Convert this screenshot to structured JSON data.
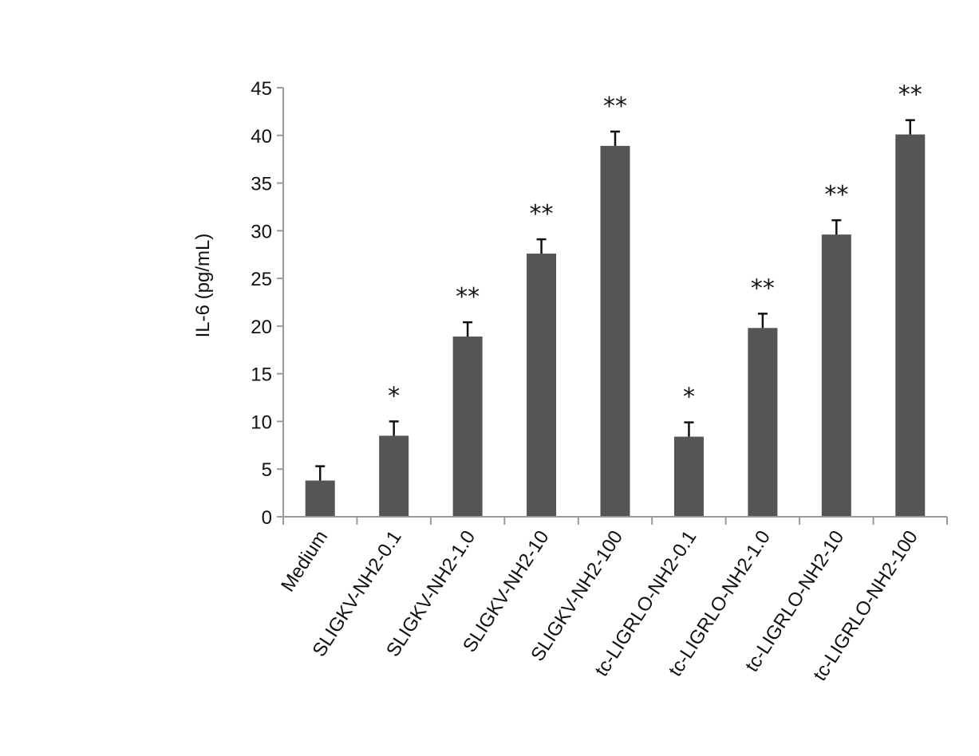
{
  "chart_data": {
    "type": "bar",
    "ylabel": "IL-6 (pg/mL)",
    "xlabel": "",
    "ylim": [
      0,
      45
    ],
    "yticks": [
      0,
      5,
      10,
      15,
      20,
      25,
      30,
      35,
      40,
      45
    ],
    "grid": false,
    "categories": [
      "Medium",
      "SLIGKV-NH2-0.1",
      "SLIGKV-NH2-1.0",
      "SLIGKV-NH2-10",
      "SLIGKV-NH2-100",
      "tc-LIGRLO-NH2-0.1",
      "tc-LIGRLO-NH2-1.0",
      "tc-LIGRLO-NH2-10",
      "tc-LIGRLO-NH2-100"
    ],
    "values": [
      3.8,
      8.5,
      18.9,
      27.6,
      38.9,
      8.4,
      19.8,
      29.6,
      40.1
    ],
    "errors": [
      1.5,
      1.5,
      1.5,
      1.5,
      1.5,
      1.5,
      1.5,
      1.5,
      1.5
    ],
    "significance": [
      "",
      "*",
      "**",
      "**",
      "**",
      "*",
      "**",
      "**",
      "**"
    ],
    "bar_color": "#555555",
    "axis_color": "#999999"
  }
}
